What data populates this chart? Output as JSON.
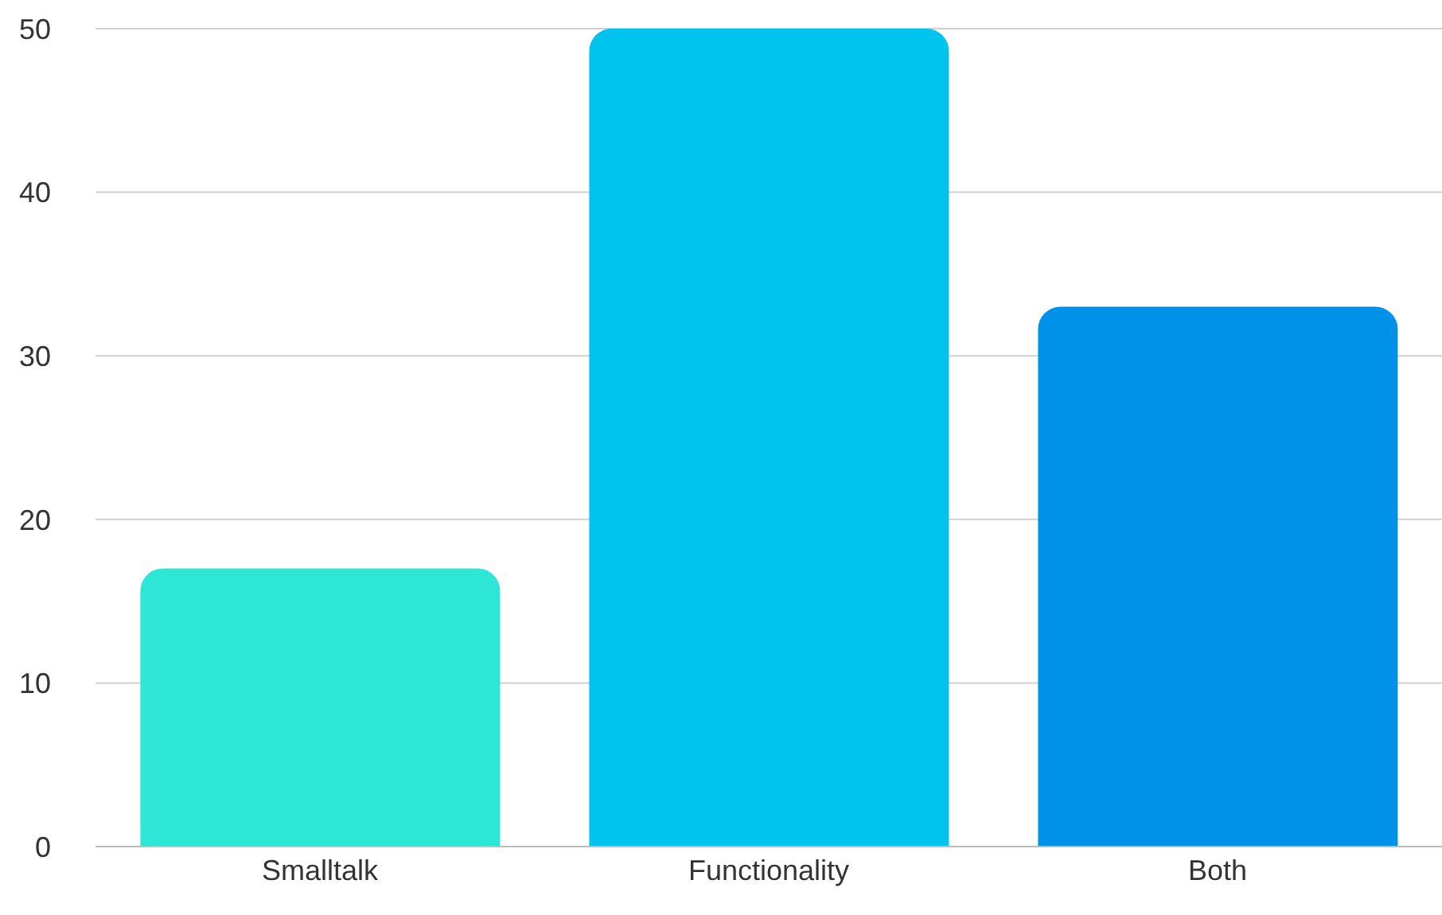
{
  "chart_data": {
    "type": "bar",
    "categories": [
      "Smalltalk",
      "Functionality",
      "Both"
    ],
    "values": [
      17,
      50,
      33
    ],
    "colors": [
      "#2ee6d6",
      "#00c4ee",
      "#0091e8"
    ],
    "ylim": [
      0,
      50
    ],
    "yticks": [
      0,
      10,
      20,
      30,
      40,
      50
    ],
    "grid": "y"
  }
}
